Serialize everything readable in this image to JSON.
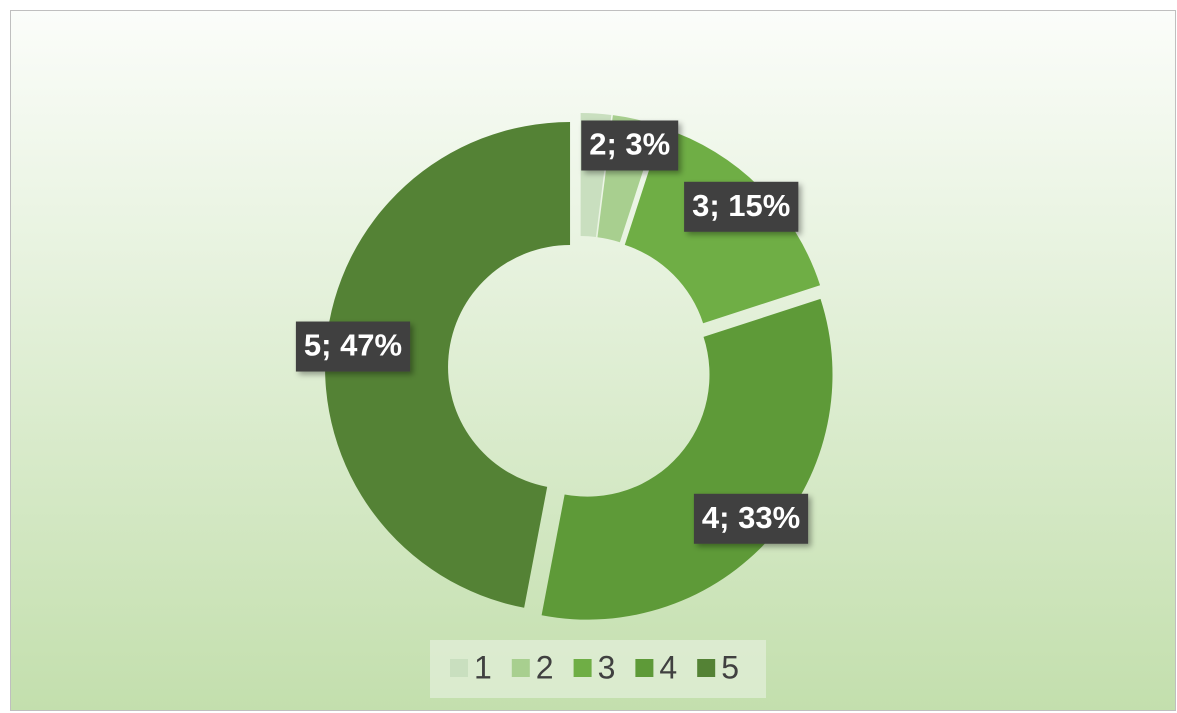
{
  "chart_data": {
    "type": "donut",
    "categories": [
      "1",
      "2",
      "3",
      "4",
      "5"
    ],
    "values": [
      2,
      3,
      15,
      33,
      47
    ],
    "value_labels": [
      null,
      "2; 3%",
      "3; 15%",
      "4; 33%",
      "5; 47%"
    ],
    "colors": [
      "#c9dfbf",
      "#a8cf8f",
      "#6fae45",
      "#5e9a38",
      "#548235"
    ],
    "legend": "bottom"
  }
}
